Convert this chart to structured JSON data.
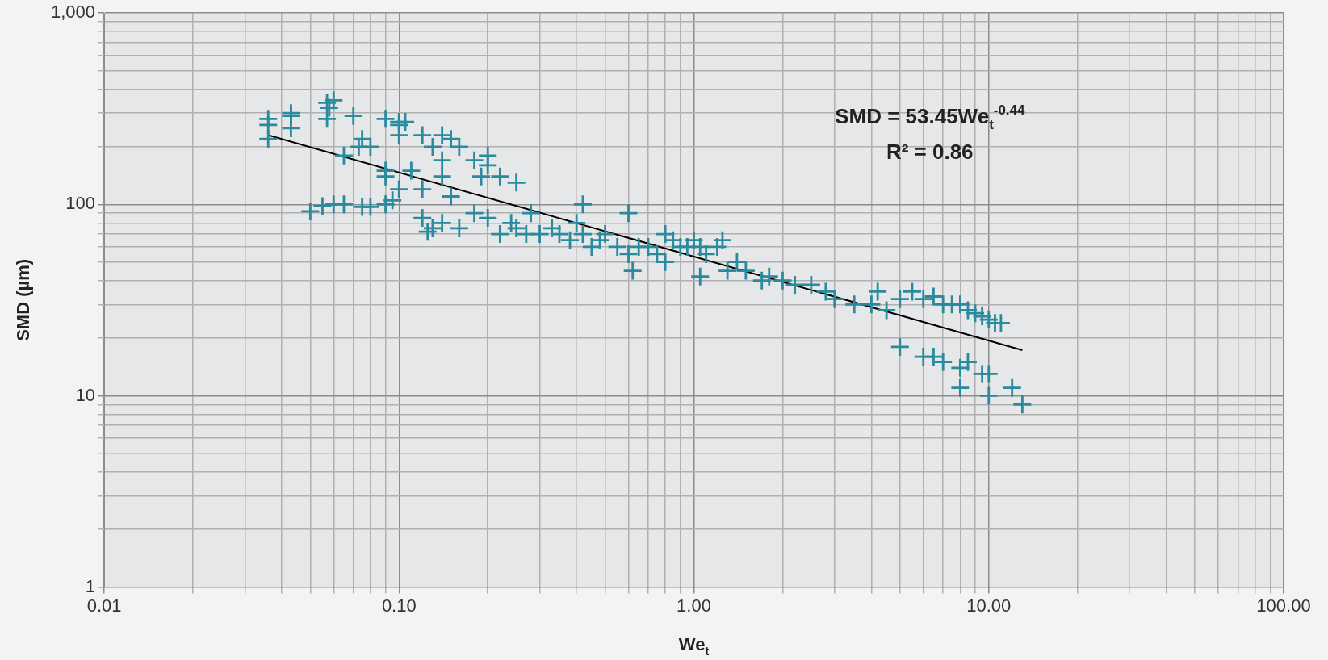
{
  "chart_data": {
    "type": "scatter",
    "xlabel": "We$_{t}$",
    "ylabel": "SMD (µm)",
    "annotations": [
      "SMD = 53.45We$_{t}$$^{-0.44}$",
      "R² = 0.86"
    ],
    "log": "xy",
    "grid": true,
    "legend": false,
    "marker": "cross",
    "xlim": [
      0.01,
      100
    ],
    "ylim": [
      1,
      1000
    ],
    "xticks": [
      {
        "value": 0.01,
        "label": "0.01"
      },
      {
        "value": 0.02,
        "label": null
      },
      {
        "value": 0.03,
        "label": null
      },
      {
        "value": 0.04,
        "label": null
      },
      {
        "value": 0.05,
        "label": null
      },
      {
        "value": 0.06,
        "label": null
      },
      {
        "value": 0.07,
        "label": null
      },
      {
        "value": 0.08,
        "label": null
      },
      {
        "value": 0.09,
        "label": null
      },
      {
        "value": 0.1,
        "label": "0.10"
      },
      {
        "value": 0.2,
        "label": null
      },
      {
        "value": 0.3,
        "label": null
      },
      {
        "value": 0.4,
        "label": null
      },
      {
        "value": 0.5,
        "label": null
      },
      {
        "value": 0.6,
        "label": null
      },
      {
        "value": 0.7,
        "label": null
      },
      {
        "value": 0.8,
        "label": null
      },
      {
        "value": 0.9,
        "label": null
      },
      {
        "value": 1,
        "label": "1.00"
      },
      {
        "value": 2,
        "label": null
      },
      {
        "value": 3,
        "label": null
      },
      {
        "value": 4,
        "label": null
      },
      {
        "value": 5,
        "label": null
      },
      {
        "value": 6,
        "label": null
      },
      {
        "value": 7,
        "label": null
      },
      {
        "value": 8,
        "label": null
      },
      {
        "value": 9,
        "label": null
      },
      {
        "value": 10,
        "label": "10.00"
      },
      {
        "value": 20,
        "label": null
      },
      {
        "value": 30,
        "label": null
      },
      {
        "value": 40,
        "label": null
      },
      {
        "value": 50,
        "label": null
      },
      {
        "value": 60,
        "label": null
      },
      {
        "value": 70,
        "label": null
      },
      {
        "value": 80,
        "label": null
      },
      {
        "value": 90,
        "label": null
      },
      {
        "value": 100,
        "label": "100.00"
      }
    ],
    "yticks": [
      1,
      {
        "value": 2,
        "label": null
      },
      {
        "value": 3,
        "label": null
      },
      {
        "value": 4,
        "label": null
      },
      {
        "value": 5,
        "label": null
      },
      {
        "value": 6,
        "label": null
      },
      {
        "value": 7,
        "label": null
      },
      {
        "value": 8,
        "label": null
      },
      {
        "value": 9,
        "label": null
      },
      10,
      {
        "value": 20,
        "label": null
      },
      {
        "value": 30,
        "label": null
      },
      {
        "value": 40,
        "label": null
      },
      {
        "value": 50,
        "label": null
      },
      {
        "value": 60,
        "label": null
      },
      {
        "value": 70,
        "label": null
      },
      {
        "value": 80,
        "label": null
      },
      {
        "value": 90,
        "label": null
      },
      100,
      {
        "value": 200,
        "label": null
      },
      {
        "value": 300,
        "label": null
      },
      {
        "value": 400,
        "label": null
      },
      {
        "value": 500,
        "label": null
      },
      {
        "value": 600,
        "label": null
      },
      {
        "value": 700,
        "label": null
      },
      {
        "value": 800,
        "label": null
      },
      {
        "value": 900,
        "label": null
      },
      {
        "value": 1000,
        "label": "1,000"
      }
    ],
    "series": [
      {
        "color": "#2a8a9e",
        "x": [
          0.036,
          0.036,
          0.036,
          0.043,
          0.043,
          0.043,
          0.057,
          0.058,
          0.057,
          0.06,
          0.065,
          0.07,
          0.075,
          0.073,
          0.08,
          0.09,
          0.1,
          0.1,
          0.105,
          0.1,
          0.12,
          0.13,
          0.14,
          0.15,
          0.16,
          0.18,
          0.2,
          0.2,
          0.19,
          0.22,
          0.25,
          0.14,
          0.09,
          0.1,
          0.12,
          0.14,
          0.15,
          0.11,
          0.09,
          0.05,
          0.055,
          0.06,
          0.065,
          0.075,
          0.08,
          0.09,
          0.095,
          0.12,
          0.125,
          0.13,
          0.14,
          0.16,
          0.18,
          0.2,
          0.22,
          0.24,
          0.25,
          0.28,
          0.27,
          0.3,
          0.33,
          0.35,
          0.38,
          0.42,
          0.4,
          0.42,
          0.45,
          0.48,
          0.5,
          0.55,
          0.6,
          0.62,
          0.6,
          0.65,
          0.7,
          0.75,
          0.8,
          0.8,
          0.85,
          0.9,
          0.95,
          1.0,
          1.05,
          1.05,
          1.1,
          1.2,
          1.25,
          1.3,
          1.4,
          1.5,
          1.7,
          1.8,
          2.0,
          2.2,
          2.5,
          2.8,
          3.0,
          3.5,
          4.0,
          4.2,
          4.5,
          5.0,
          5.5,
          6.0,
          6.5,
          7.0,
          7.5,
          8.0,
          8.5,
          9.0,
          9.5,
          10,
          10.5,
          11,
          5.0,
          6.0,
          6.5,
          7.0,
          8.0,
          8.5,
          8.0,
          9.5,
          10,
          10,
          12,
          13
        ],
        "values": [
          280,
          260,
          220,
          300,
          290,
          250,
          340,
          320,
          280,
          350,
          180,
          290,
          220,
          200,
          200,
          280,
          270,
          260,
          270,
          230,
          230,
          200,
          230,
          220,
          200,
          170,
          180,
          160,
          140,
          140,
          130,
          170,
          150,
          120,
          120,
          140,
          110,
          150,
          140,
          92,
          98,
          100,
          100,
          97,
          97,
          100,
          105,
          85,
          72,
          75,
          80,
          75,
          90,
          85,
          70,
          80,
          75,
          90,
          70,
          70,
          75,
          70,
          65,
          100,
          80,
          70,
          60,
          65,
          70,
          60,
          55,
          45,
          90,
          60,
          60,
          55,
          70,
          50,
          65,
          60,
          60,
          65,
          60,
          42,
          55,
          60,
          65,
          45,
          50,
          45,
          40,
          42,
          40,
          38,
          38,
          35,
          32,
          30,
          30,
          35,
          28,
          32,
          35,
          32,
          33,
          30,
          30,
          30,
          28,
          27,
          26,
          25,
          24,
          24,
          18,
          16,
          16,
          15,
          14,
          15,
          11,
          13,
          13,
          10,
          11,
          9
        ]
      },
      {
        "type": "line",
        "marker": "none",
        "color": "#000000",
        "x": [
          0.036,
          13
        ],
        "values": [
          230,
          17.3
        ]
      }
    ]
  }
}
